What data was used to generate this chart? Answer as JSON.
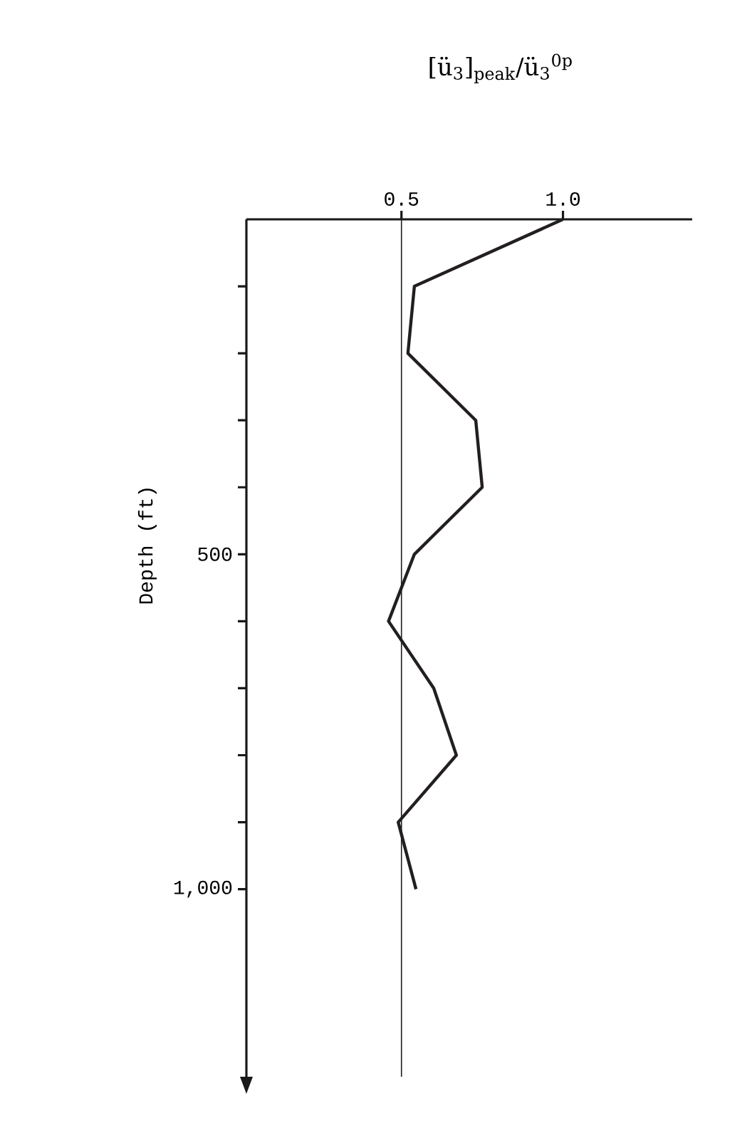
{
  "chart_data": {
    "type": "line",
    "xlabel": "[ü$_{3}$]$_{peak}$/ü$_{3}$$^{0p}$",
    "ylabel": "Depth (ft)",
    "series": [
      {
        "color": "#231f20",
        "x": [
          1.0,
          0.54,
          0.52,
          0.73,
          0.75,
          0.54,
          0.46,
          0.6,
          0.67,
          0.49,
          0.545
        ],
        "values": [
          0,
          100,
          200,
          300,
          400,
          500,
          600,
          700,
          800,
          900,
          1000
        ]
      }
    ],
    "xlim": [
      0.02,
      1.4
    ],
    "xticks": [
      {
        "value": 0.5,
        "label": "0.5"
      },
      {
        "value": 1.0,
        "label": "1.0"
      }
    ],
    "ylim": [
      1280,
      0
    ],
    "yticks": [
      {
        "value": 100,
        "label": null
      },
      {
        "value": 200,
        "label": null
      },
      {
        "value": 300,
        "label": null
      },
      {
        "value": 400,
        "label": null
      },
      {
        "value": 500,
        "label": "500"
      },
      {
        "value": 600,
        "label": null
      },
      {
        "value": 700,
        "label": null
      },
      {
        "value": 800,
        "label": null
      },
      {
        "value": 900,
        "label": null
      },
      {
        "value": 1000,
        "label": "1,000"
      }
    ],
    "ref_lines": [
      {
        "axis": "x",
        "value": 0.5,
        "color": "#231f20"
      }
    ],
    "grid": false
  }
}
